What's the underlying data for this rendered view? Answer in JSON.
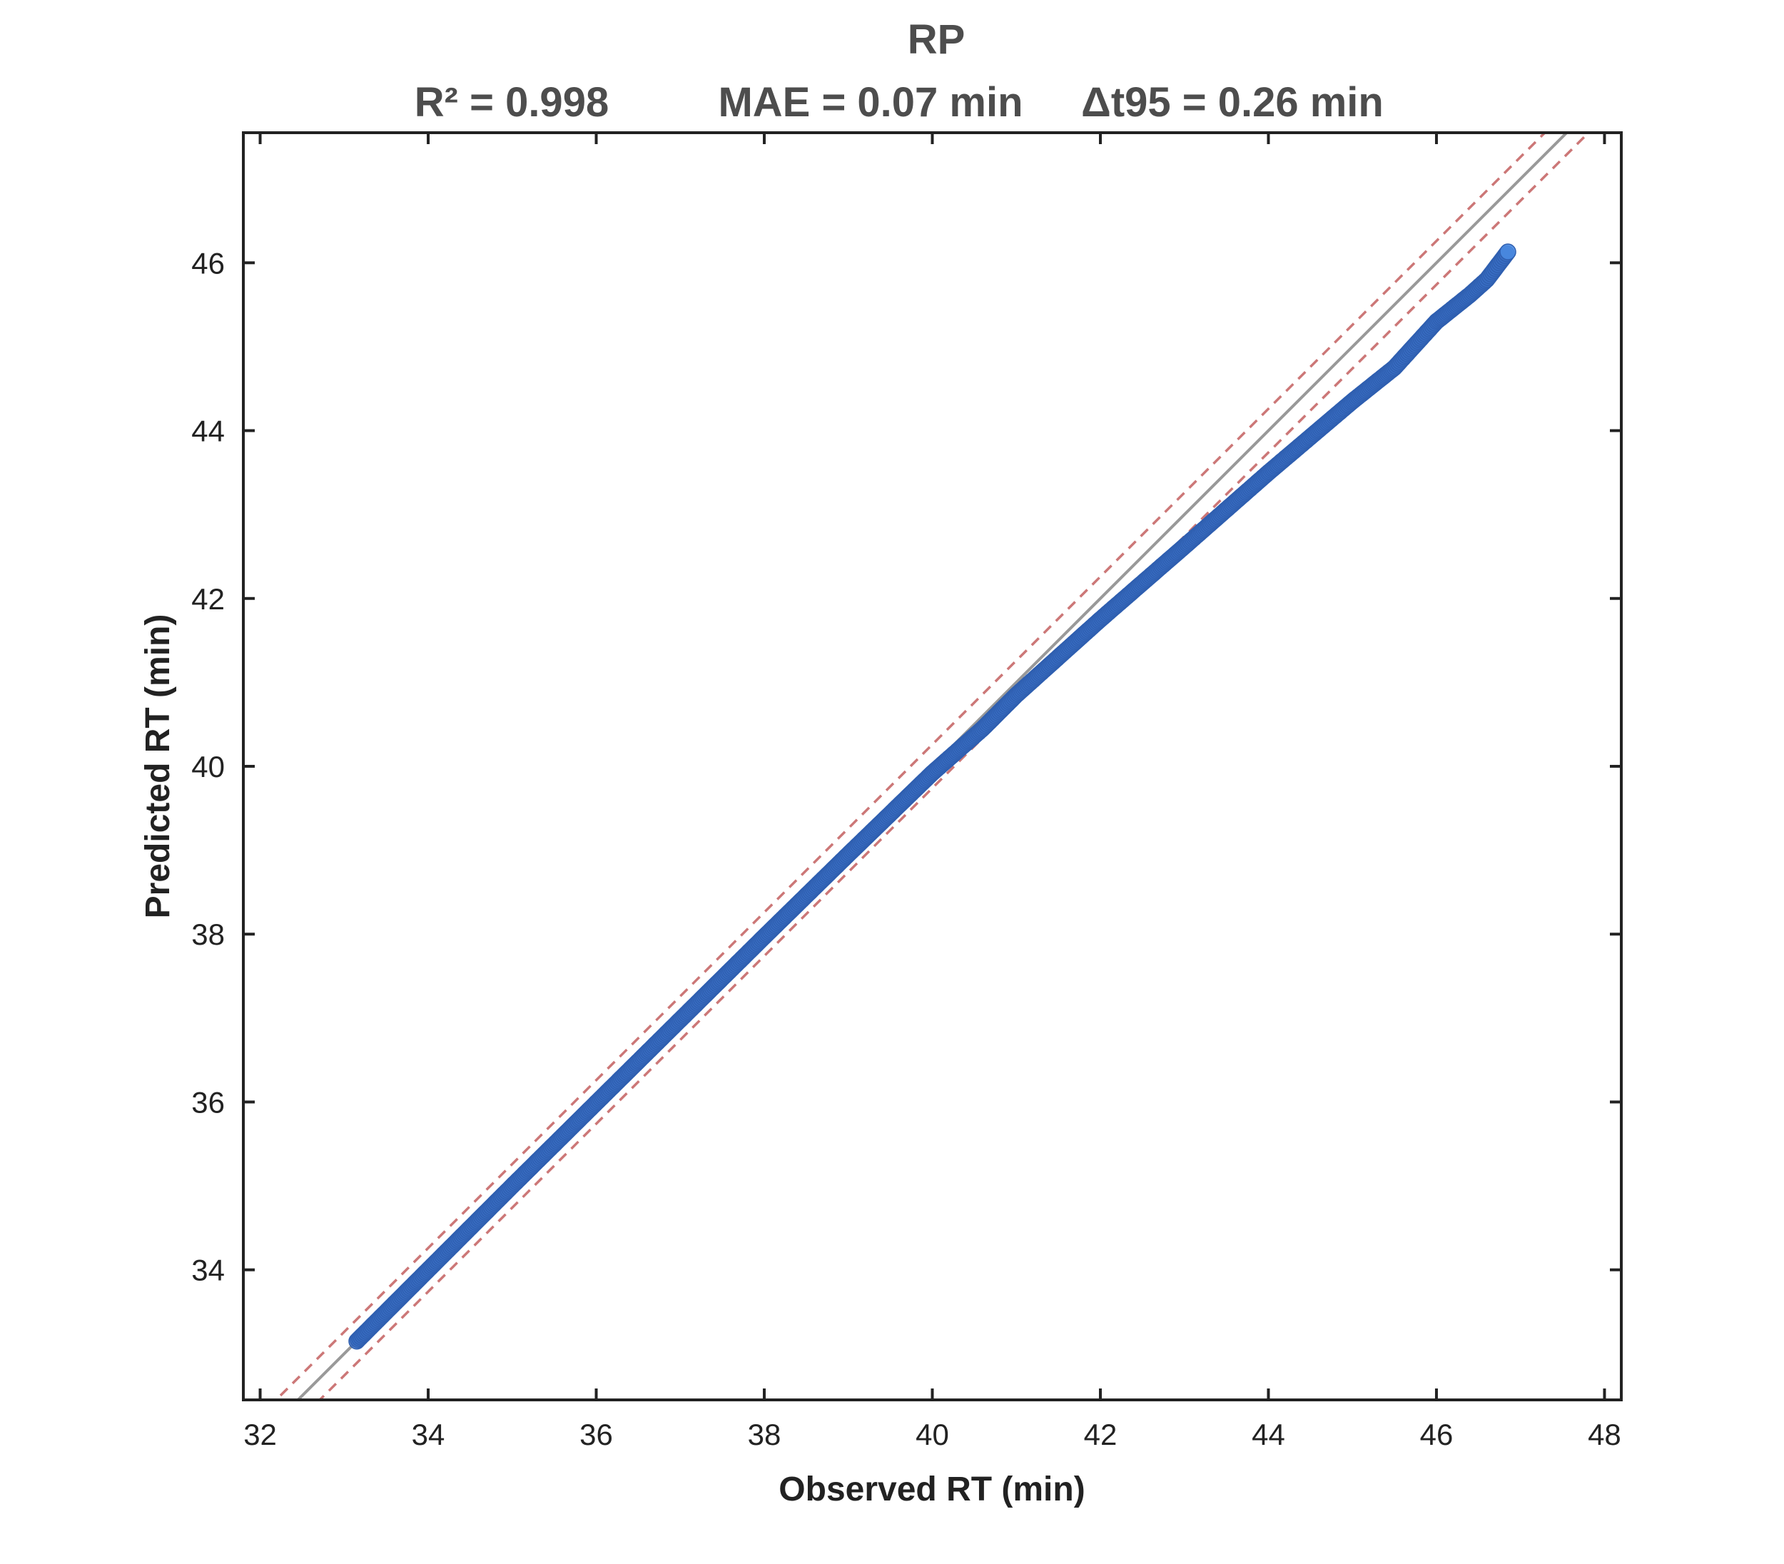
{
  "chart_data": {
    "type": "scatter",
    "title": "RP",
    "subtitle": {
      "r2": "R² = 0.998",
      "mae": "MAE = 0.07 min",
      "dt95": "Δt95 = 0.26 min"
    },
    "xlabel": "Observed RT (min)",
    "ylabel": "Predicted RT (min)",
    "xlim": [
      31.8,
      48.2
    ],
    "ylim": [
      32.45,
      47.55
    ],
    "xticks": [
      32,
      34,
      36,
      38,
      40,
      42,
      44,
      46,
      48
    ],
    "yticks": [
      34,
      36,
      38,
      40,
      42,
      44,
      46
    ],
    "xtick_labels": [
      "32",
      "34",
      "36",
      "38",
      "40",
      "42",
      "44",
      "46",
      "48"
    ],
    "ytick_labels": [
      "34",
      "36",
      "38",
      "40",
      "42",
      "44",
      "46"
    ],
    "grid": false,
    "legend": "none",
    "reference_lines": {
      "identity": {
        "slope": 1,
        "intercept": 0,
        "color": "#999999",
        "style": "solid"
      },
      "band": {
        "half_width": 0.26,
        "color": "#cc7777",
        "style": "dashed"
      }
    },
    "series": [
      {
        "color": "#3a6fc4",
        "points_curve": [
          [
            33.15,
            33.15
          ],
          [
            34.0,
            34.0
          ],
          [
            35.0,
            35.0
          ],
          [
            36.0,
            35.99
          ],
          [
            37.0,
            36.98
          ],
          [
            38.0,
            37.97
          ],
          [
            39.0,
            38.95
          ],
          [
            40.0,
            39.92
          ],
          [
            40.6,
            40.45
          ],
          [
            41.0,
            40.85
          ],
          [
            42.0,
            41.75
          ],
          [
            43.0,
            42.62
          ],
          [
            44.0,
            43.5
          ],
          [
            45.0,
            44.35
          ],
          [
            45.5,
            44.75
          ],
          [
            46.0,
            45.3
          ],
          [
            46.4,
            45.62
          ],
          [
            46.6,
            45.8
          ],
          [
            46.85,
            46.13
          ]
        ]
      }
    ]
  }
}
